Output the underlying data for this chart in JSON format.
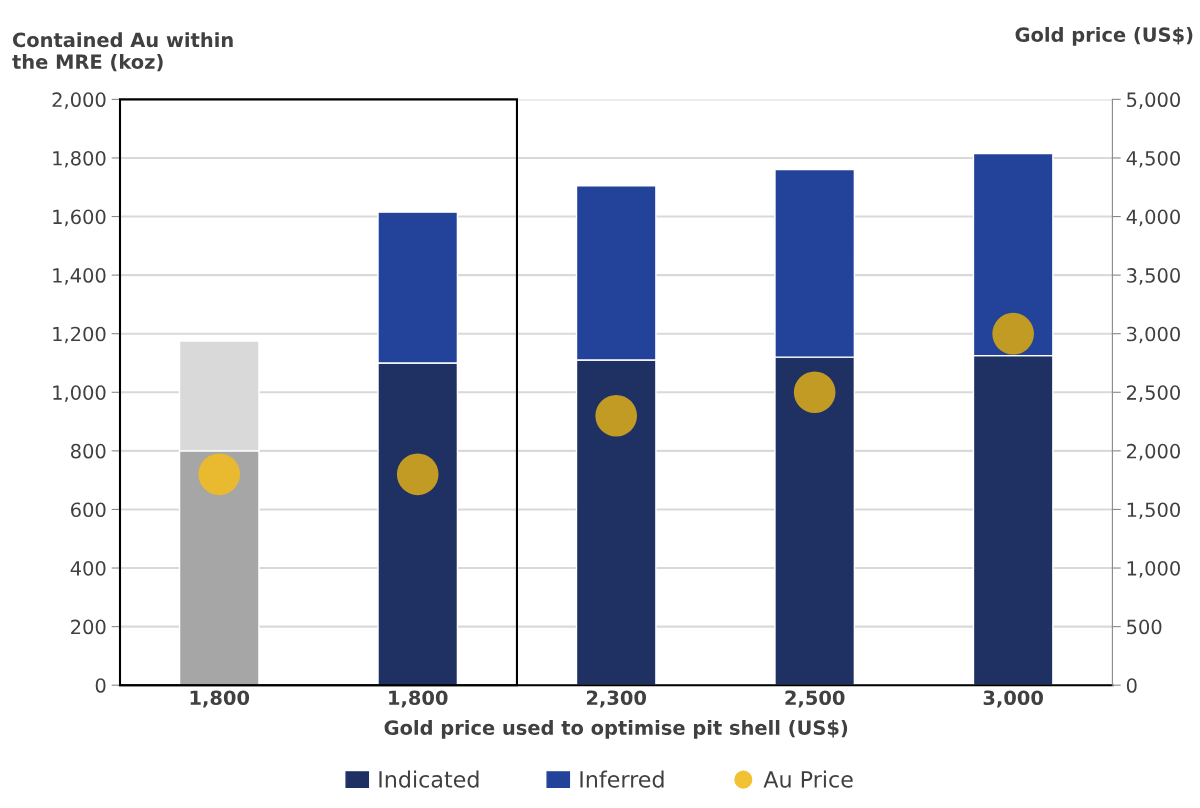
{
  "chart_data": {
    "type": "bar",
    "stacked": true,
    "xlabel": "Gold price used to optimise pit shell (US$)",
    "ylabel": "Contained Au within\nthe MRE (koz)",
    "y2label": "Gold price (US$)",
    "categories": [
      "1,800",
      "1,800",
      "2,300",
      "2,500",
      "3,000"
    ],
    "series": [
      {
        "name": "Indicated",
        "color": "#1f3163",
        "colors": [
          "#a6a6a6",
          "#1f3163",
          "#1f3163",
          "#1f3163",
          "#1f3163"
        ],
        "values": [
          800,
          1100,
          1110,
          1120,
          1125
        ]
      },
      {
        "name": "Inferred",
        "color": "#23439b",
        "colors": [
          "#d9d9d9",
          "#23439b",
          "#23439b",
          "#23439b",
          "#23439b"
        ],
        "values": [
          375,
          515,
          595,
          640,
          690
        ]
      },
      {
        "name": "Au Price",
        "type": "scatter",
        "axis": "y2",
        "color": "#f2c233",
        "colors": [
          "#e9b92f",
          "#c19b23",
          "#c19b23",
          "#c19b23",
          "#c19b23"
        ],
        "values": [
          1800,
          1800,
          2300,
          2500,
          3000
        ]
      }
    ],
    "ylim": [
      0,
      2000
    ],
    "yticks": [
      {
        "value": 0,
        "label": "0"
      },
      {
        "value": 200,
        "label": "200"
      },
      {
        "value": 400,
        "label": "400"
      },
      {
        "value": 600,
        "label": "600"
      },
      {
        "value": 800,
        "label": "800"
      },
      {
        "value": 1000,
        "label": "1,000"
      },
      {
        "value": 1200,
        "label": "1,200"
      },
      {
        "value": 1400,
        "label": "1,400"
      },
      {
        "value": 1600,
        "label": "1,600"
      },
      {
        "value": 1800,
        "label": "1,800"
      },
      {
        "value": 2000,
        "label": "2,000"
      }
    ],
    "y2lim": [
      0,
      5000
    ],
    "y2ticks": [
      {
        "value": 0,
        "label": "0"
      },
      {
        "value": 500,
        "label": "500"
      },
      {
        "value": 1000,
        "label": "1,000"
      },
      {
        "value": 1500,
        "label": "1,500"
      },
      {
        "value": 2000,
        "label": "2,000"
      },
      {
        "value": 2500,
        "label": "2,500"
      },
      {
        "value": 3000,
        "label": "3,000"
      },
      {
        "value": 3500,
        "label": "3,500"
      },
      {
        "value": 4000,
        "label": "4,000"
      },
      {
        "value": 4500,
        "label": "4,500"
      },
      {
        "value": 5000,
        "label": "5,000"
      }
    ],
    "grid": "y",
    "legend": "bottom",
    "marker": "circle"
  }
}
